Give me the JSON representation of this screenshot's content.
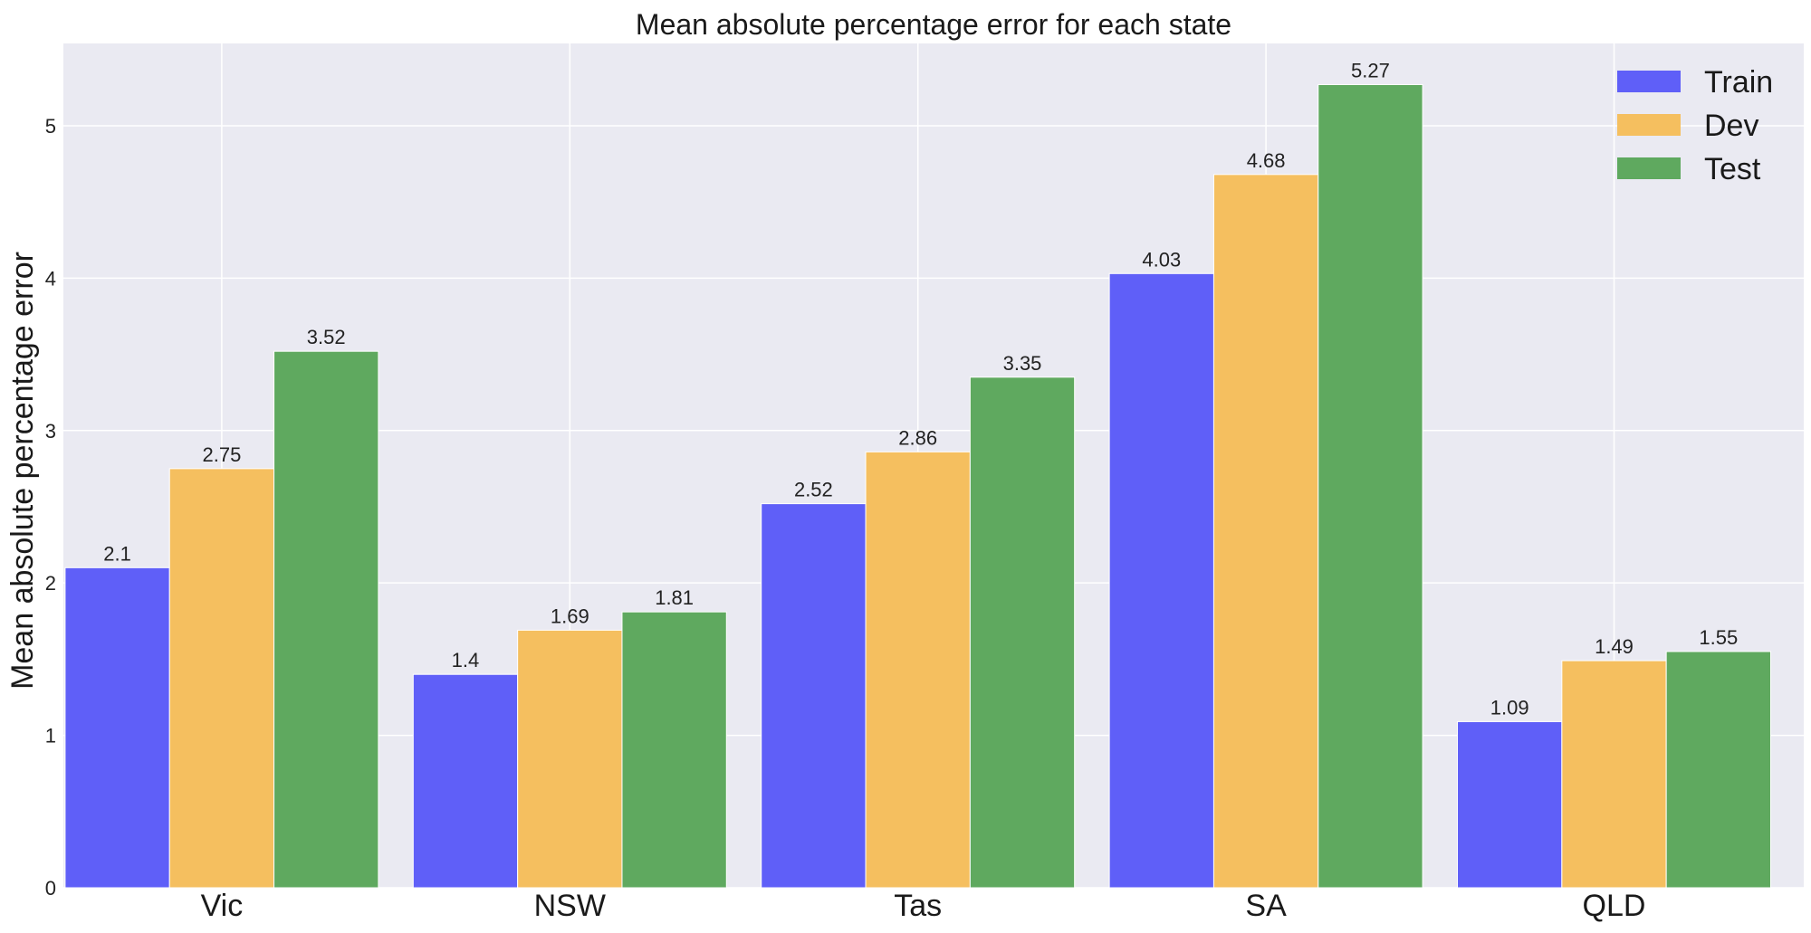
{
  "chart_data": {
    "type": "bar",
    "title": "Mean absolute percentage error for each state",
    "xlabel": "",
    "ylabel": "Mean absolute percentage error",
    "categories": [
      "Vic",
      "NSW",
      "Tas",
      "SA",
      "QLD"
    ],
    "series": [
      {
        "name": "Train",
        "color": "#5f5ff8",
        "values": [
          2.1,
          1.4,
          2.52,
          4.03,
          1.09
        ],
        "labels": [
          "2.1",
          "1.4",
          "2.52",
          "4.03",
          "1.09"
        ]
      },
      {
        "name": "Dev",
        "color": "#f5bf5f",
        "values": [
          2.75,
          1.69,
          2.86,
          4.68,
          1.49
        ],
        "labels": [
          "2.75",
          "1.69",
          "2.86",
          "4.68",
          "1.49"
        ]
      },
      {
        "name": "Test",
        "color": "#5fa95f",
        "values": [
          3.52,
          1.81,
          3.35,
          5.27,
          1.55
        ],
        "labels": [
          "3.52",
          "1.81",
          "3.35",
          "5.27",
          "1.55"
        ]
      }
    ],
    "yticks": [
      "0",
      "1",
      "2",
      "3",
      "4",
      "5"
    ],
    "ylim": [
      0,
      5.54
    ],
    "grid": true,
    "legend_position": "top-right",
    "background_color": "#eaeaf2",
    "grid_color": "#ffffff"
  }
}
